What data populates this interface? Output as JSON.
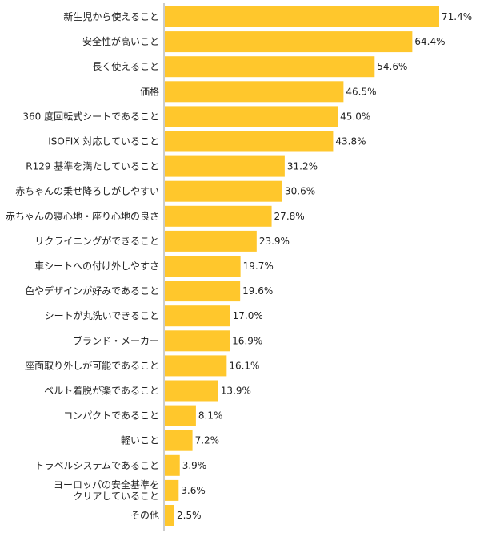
{
  "chart_data": {
    "type": "bar",
    "orientation": "horizontal",
    "categories": [
      [
        "新生児から使えること"
      ],
      [
        "安全性が高いこと"
      ],
      [
        "長く使えること"
      ],
      [
        "価格"
      ],
      [
        "360 度回転式シートであること"
      ],
      [
        "ISOFIX 対応していること"
      ],
      [
        "R129 基準を満たしていること"
      ],
      [
        "赤ちゃんの乗せ降ろしがしやすい"
      ],
      [
        "赤ちゃんの寝心地・座り心地の良さ"
      ],
      [
        "リクライニングができること"
      ],
      [
        "車シートへの付け外しやすさ"
      ],
      [
        "色やデザインが好みであること"
      ],
      [
        "シートが丸洗いできること"
      ],
      [
        "ブランド・メーカー"
      ],
      [
        "座面取り外しが可能であること"
      ],
      [
        "ベルト着脱が楽であること"
      ],
      [
        "コンパクトであること"
      ],
      [
        "軽いこと"
      ],
      [
        "トラベルシステムであること"
      ],
      [
        "ヨーロッパの安全基準を",
        "クリアしていること"
      ],
      [
        "その他"
      ]
    ],
    "values": [
      71.4,
      64.4,
      54.6,
      46.5,
      45.0,
      43.8,
      31.2,
      30.6,
      27.8,
      23.9,
      19.7,
      19.6,
      17.0,
      16.9,
      16.1,
      13.9,
      8.1,
      7.2,
      3.9,
      3.6,
      2.5
    ],
    "value_labels": [
      "71.4%",
      "64.4%",
      "54.6%",
      "46.5%",
      "45.0%",
      "43.8%",
      "31.2%",
      "30.6%",
      "27.8%",
      "23.9%",
      "19.7%",
      "19.6%",
      "17.0%",
      "16.9%",
      "16.1%",
      "13.9%",
      "8.1%",
      "7.2%",
      "3.9%",
      "3.6%",
      "2.5%"
    ],
    "xlim": [
      0,
      71.4
    ],
    "grid": false,
    "bar_color": "#FFC72C"
  }
}
